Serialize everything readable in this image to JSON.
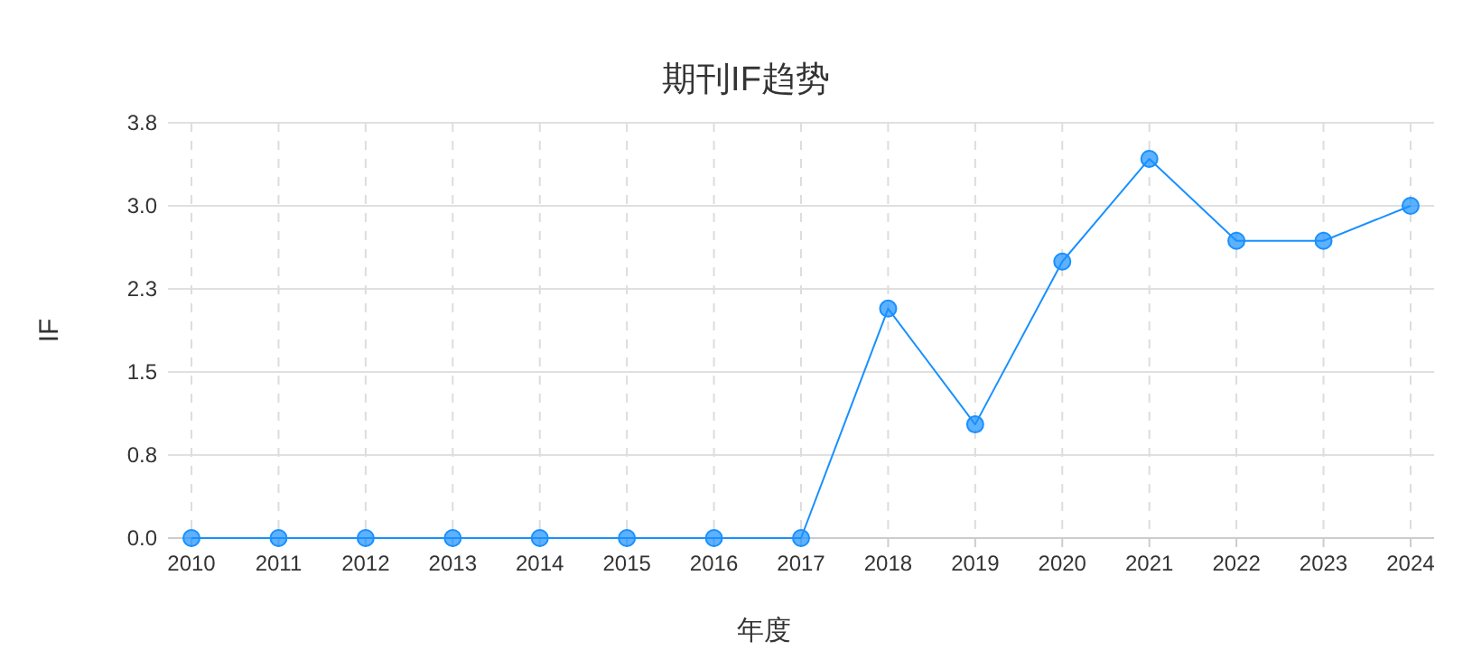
{
  "chart_data": {
    "type": "line",
    "title": "期刊IF趋势",
    "xlabel": "年度",
    "ylabel": "IF",
    "categories": [
      "2010",
      "2011",
      "2012",
      "2013",
      "2014",
      "2015",
      "2016",
      "2017",
      "2018",
      "2019",
      "2020",
      "2021",
      "2022",
      "2023",
      "2024"
    ],
    "series": [
      {
        "color": "#1890ff",
        "values": [
          0,
          0,
          0,
          0,
          0,
          0,
          0,
          0,
          2.1,
          1.04,
          2.53,
          3.47,
          2.72,
          2.72,
          3.04
        ]
      }
    ],
    "ylim": [
      0,
      3.8
    ],
    "yticks": [
      {
        "value": 0,
        "label": "0.0"
      },
      {
        "value": 0.76,
        "label": "0.8"
      },
      {
        "value": 1.52,
        "label": "1.5"
      },
      {
        "value": 2.28,
        "label": "2.3"
      },
      {
        "value": 3.04,
        "label": "3.0"
      },
      3.8
    ],
    "grid": true,
    "marker": "circle",
    "line_style": "solid"
  }
}
